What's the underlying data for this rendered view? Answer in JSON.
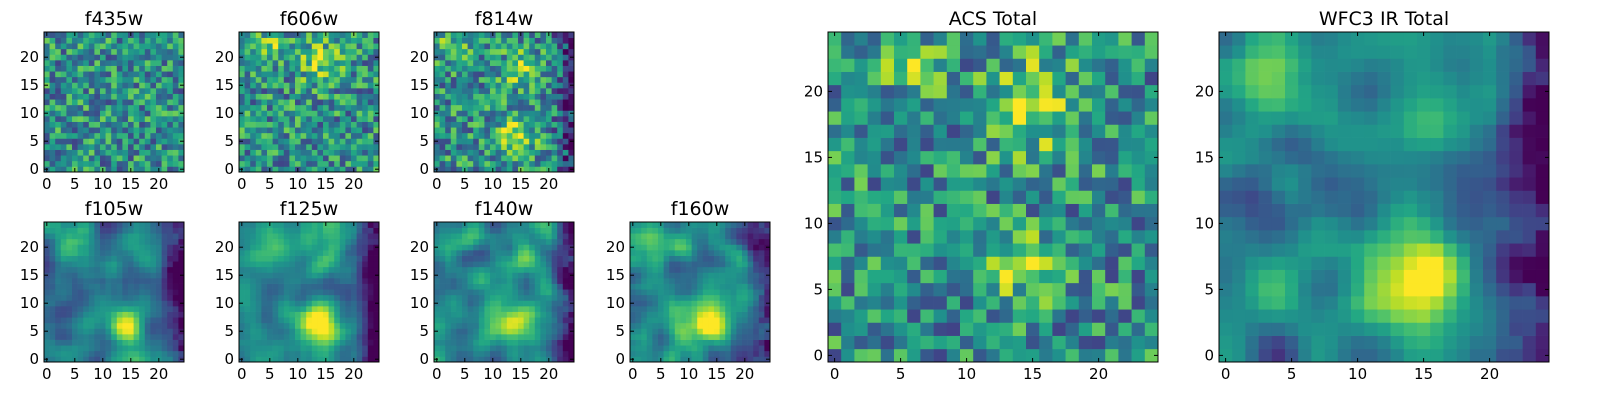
{
  "figure": {
    "description_free": true
  },
  "chart_data": [
    {
      "type": "heatmap",
      "id": "f435w",
      "title": "f435w",
      "x_ticks": [
        "0",
        "5",
        "10",
        "15",
        "20"
      ],
      "y_ticks": [
        "0",
        "5",
        "10",
        "15",
        "20"
      ],
      "xlim": [
        -0.5,
        24.5
      ],
      "ylim": [
        -0.5,
        24.5
      ],
      "grid_size": 25,
      "colormap": "viridis",
      "pattern": "noise",
      "features": [],
      "dark_edge": ""
    },
    {
      "type": "heatmap",
      "id": "f606w",
      "title": "f606w",
      "x_ticks": [
        "0",
        "5",
        "10",
        "15",
        "20"
      ],
      "y_ticks": [
        "0",
        "5",
        "10",
        "15",
        "20"
      ],
      "xlim": [
        -0.5,
        24.5
      ],
      "ylim": [
        -0.5,
        24.5
      ],
      "grid_size": 25,
      "colormap": "viridis",
      "pattern": "noise",
      "features": [
        {
          "x": 14,
          "y": 19,
          "amp": 0.35,
          "sigma": 2.5
        },
        {
          "x": 5,
          "y": 22,
          "amp": 0.3,
          "sigma": 2
        }
      ],
      "dark_edge": ""
    },
    {
      "type": "heatmap",
      "id": "f814w",
      "title": "f814w",
      "x_ticks": [
        "0",
        "5",
        "10",
        "15",
        "20"
      ],
      "y_ticks": [
        "0",
        "5",
        "10",
        "15",
        "20"
      ],
      "xlim": [
        -0.5,
        24.5
      ],
      "ylim": [
        -0.5,
        24.5
      ],
      "grid_size": 25,
      "colormap": "viridis",
      "pattern": "noise",
      "features": [
        {
          "x": 14,
          "y": 6,
          "amp": 0.45,
          "sigma": 2.2
        },
        {
          "x": 15,
          "y": 18,
          "amp": 0.4,
          "sigma": 2
        },
        {
          "x": 3,
          "y": 22,
          "amp": 0.25,
          "sigma": 2
        }
      ],
      "dark_edge": "right"
    },
    {
      "type": "heatmap",
      "id": "f105w",
      "title": "f105w",
      "x_ticks": [
        "0",
        "5",
        "10",
        "15",
        "20"
      ],
      "y_ticks": [
        "0",
        "5",
        "10",
        "15",
        "20"
      ],
      "xlim": [
        -0.5,
        24.5
      ],
      "ylim": [
        -0.5,
        24.5
      ],
      "grid_size": 25,
      "colormap": "viridis",
      "pattern": "smooth",
      "features": [
        {
          "x": 14,
          "y": 6,
          "amp": 0.6,
          "sigma": 2.3
        },
        {
          "x": 5,
          "y": 21,
          "amp": 0.3,
          "sigma": 2.5
        }
      ],
      "dark_edge": "right"
    },
    {
      "type": "heatmap",
      "id": "f125w",
      "title": "f125w",
      "x_ticks": [
        "0",
        "5",
        "10",
        "15",
        "20"
      ],
      "y_ticks": [
        "0",
        "5",
        "10",
        "15",
        "20"
      ],
      "xlim": [
        -0.5,
        24.5
      ],
      "ylim": [
        -0.5,
        24.5
      ],
      "grid_size": 25,
      "colormap": "viridis",
      "pattern": "smooth",
      "features": [
        {
          "x": 14,
          "y": 6,
          "amp": 0.55,
          "sigma": 2.6
        },
        {
          "x": 6,
          "y": 21,
          "amp": 0.35,
          "sigma": 3
        },
        {
          "x": 15,
          "y": 18,
          "amp": 0.3,
          "sigma": 2
        }
      ],
      "dark_edge": "right"
    },
    {
      "type": "heatmap",
      "id": "f140w",
      "title": "f140w",
      "x_ticks": [
        "0",
        "5",
        "10",
        "15",
        "20"
      ],
      "y_ticks": [
        "0",
        "5",
        "10",
        "15",
        "20"
      ],
      "xlim": [
        -0.5,
        24.5
      ],
      "ylim": [
        -0.5,
        24.5
      ],
      "grid_size": 25,
      "colormap": "viridis",
      "pattern": "smooth",
      "features": [
        {
          "x": 14,
          "y": 6,
          "amp": 0.6,
          "sigma": 2.4
        },
        {
          "x": 4,
          "y": 22,
          "amp": 0.35,
          "sigma": 2.5
        },
        {
          "x": 15,
          "y": 17,
          "amp": 0.3,
          "sigma": 2
        }
      ],
      "dark_edge": "right"
    },
    {
      "type": "heatmap",
      "id": "f160w",
      "title": "f160w",
      "x_ticks": [
        "0",
        "5",
        "10",
        "15",
        "20"
      ],
      "y_ticks": [
        "0",
        "5",
        "10",
        "15",
        "20"
      ],
      "xlim": [
        -0.5,
        24.5
      ],
      "ylim": [
        -0.5,
        24.5
      ],
      "grid_size": 25,
      "colormap": "viridis",
      "pattern": "smooth",
      "features": [
        {
          "x": 13,
          "y": 6,
          "amp": 0.65,
          "sigma": 2.4
        },
        {
          "x": 4,
          "y": 21,
          "amp": 0.3,
          "sigma": 2.5
        }
      ],
      "dark_edge": "right"
    },
    {
      "type": "heatmap",
      "id": "acs-total",
      "title": "ACS Total",
      "x_ticks": [
        "0",
        "5",
        "10",
        "15",
        "20"
      ],
      "y_ticks": [
        "0",
        "5",
        "10",
        "15",
        "20"
      ],
      "xlim": [
        -0.5,
        24.5
      ],
      "ylim": [
        -0.5,
        24.5
      ],
      "grid_size": 25,
      "colormap": "viridis",
      "pattern": "noise",
      "features": [
        {
          "x": 15,
          "y": 19,
          "amp": 0.45,
          "sigma": 2.2
        },
        {
          "x": 14,
          "y": 7,
          "amp": 0.4,
          "sigma": 1.8
        },
        {
          "x": 6,
          "y": 22,
          "amp": 0.3,
          "sigma": 1.5
        }
      ],
      "dark_edge": ""
    },
    {
      "type": "heatmap",
      "id": "wfc3-ir-total",
      "title": "WFC3 IR Total",
      "x_ticks": [
        "0",
        "5",
        "10",
        "15",
        "20"
      ],
      "y_ticks": [
        "0",
        "5",
        "10",
        "15",
        "20"
      ],
      "xlim": [
        -0.5,
        24.5
      ],
      "ylim": [
        -0.5,
        24.5
      ],
      "grid_size": 25,
      "colormap": "viridis",
      "pattern": "smooth",
      "features": [
        {
          "x": 14,
          "y": 6,
          "amp": 0.75,
          "sigma": 2.8
        },
        {
          "x": 5,
          "y": 21,
          "amp": 0.4,
          "sigma": 2.8
        },
        {
          "x": 15,
          "y": 18,
          "amp": 0.35,
          "sigma": 2
        }
      ],
      "dark_edge": "right"
    }
  ]
}
